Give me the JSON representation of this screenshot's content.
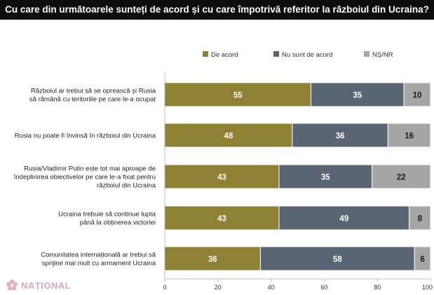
{
  "title": "Cu care din următoarele sunteți de acord și cu care împotrivă referitor la războiul din Ucraina?",
  "watermark": "NAȚIONAL",
  "chart_data": {
    "type": "bar",
    "orientation": "horizontal",
    "stacked": true,
    "categories": [
      [
        "Războiul ar trebui să se oprească și Rusia",
        "să rămână cu teritoriile pe care le-a ocupat"
      ],
      [
        "Rusia nu poate fi învinsă în războiul din Ucraina"
      ],
      [
        "Rusia/Vladimir Putin este tot mai aproape de",
        "îndeplinirea obiectivelor pe care le-a fixat pentru",
        "războiul din Ucraina"
      ],
      [
        "Ucraina trebuie să continue lupta",
        "până la obținerea victoriei"
      ],
      [
        "Comunitatea internațională ar trebui să",
        "sprijine mai mult cu armament Ucraina"
      ]
    ],
    "series": [
      {
        "name": "De acord",
        "color": "#8e8133",
        "values": [
          55,
          48,
          43,
          43,
          36
        ]
      },
      {
        "name": "Nu sunt de acord",
        "color": "#5a6573",
        "values": [
          35,
          36,
          35,
          49,
          58
        ]
      },
      {
        "name": "NȘ/NR",
        "color": "#a6a6a6",
        "values": [
          10,
          16,
          22,
          8,
          6
        ]
      }
    ],
    "xlim": [
      0,
      100
    ],
    "xticks": [
      0,
      20,
      40,
      60,
      80,
      100
    ],
    "xtick_labels": [
      "0",
      "20",
      "40",
      "60",
      "80",
      "100"
    ],
    "legend_position": "top",
    "grid": false
  }
}
